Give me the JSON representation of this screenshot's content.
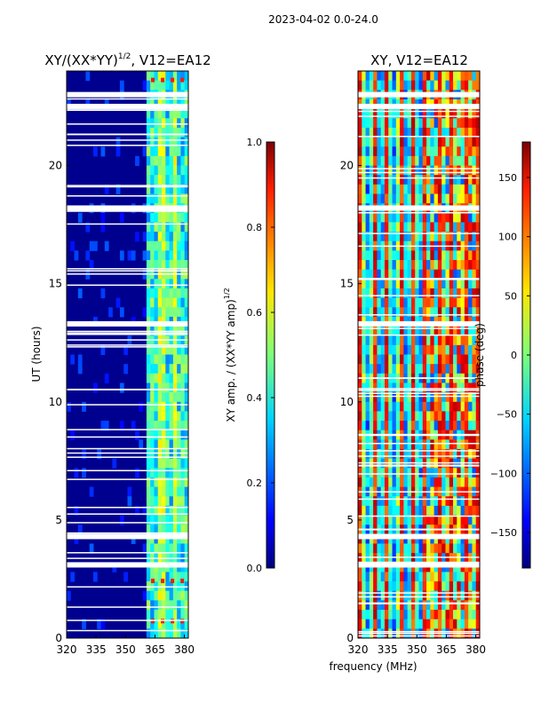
{
  "suptitle": "2023-04-02 0.0-24.0",
  "shared_xlabel": "frequency (MHz)",
  "chart_data": [
    {
      "type": "heatmap",
      "title_main": "XY/(XX*YY)",
      "title_sup": "1/2",
      "title_tail": ", V12=EA12",
      "xlabel": "",
      "ylabel": "UT (hours)",
      "xlim": [
        320,
        382
      ],
      "ylim": [
        0,
        24
      ],
      "xticks": [
        "320",
        "335",
        "350",
        "365",
        "380"
      ],
      "xtick_values": [
        320,
        335,
        350,
        365,
        380
      ],
      "yticks": [
        "0",
        "5",
        "10",
        "15",
        "20"
      ],
      "ytick_values": [
        0,
        5,
        10,
        15,
        20
      ],
      "colorbar": {
        "label_main": "XY amp. / (XX*YY amp)",
        "label_sup": "1/2",
        "range": [
          0.0,
          1.0
        ],
        "ticks": [
          "0.0",
          "0.2",
          "0.4",
          "0.6",
          "0.8",
          "1.0"
        ],
        "tick_values": [
          0.0,
          0.2,
          0.4,
          0.6,
          0.8,
          1.0
        ]
      },
      "blank_rows_ut": [
        23.0,
        22.5,
        18.2,
        13.3,
        4.3,
        3.1
      ],
      "bright_band_mhz": [
        360,
        382
      ]
    },
    {
      "type": "heatmap",
      "title_main": "XY, V12=EA12",
      "title_sup": "",
      "title_tail": "",
      "xlabel": "",
      "ylabel": "",
      "xlim": [
        320,
        382
      ],
      "ylim": [
        0,
        24
      ],
      "xticks": [
        "320",
        "335",
        "350",
        "365",
        "380"
      ],
      "xtick_values": [
        320,
        335,
        350,
        365,
        380
      ],
      "yticks": [
        "0",
        "5",
        "10",
        "15",
        "20"
      ],
      "ytick_values": [
        0,
        5,
        10,
        15,
        20
      ],
      "colorbar": {
        "label_main": "phase (deg)",
        "label_sup": "",
        "range": [
          -180,
          180
        ],
        "ticks": [
          "−150",
          "−100",
          "−50",
          "0",
          "50",
          "100",
          "150"
        ],
        "tick_values": [
          -150,
          -100,
          -50,
          0,
          50,
          100,
          150
        ]
      },
      "blank_rows_ut": [
        23.0,
        22.5,
        18.2,
        13.3,
        4.3,
        3.1
      ]
    }
  ]
}
